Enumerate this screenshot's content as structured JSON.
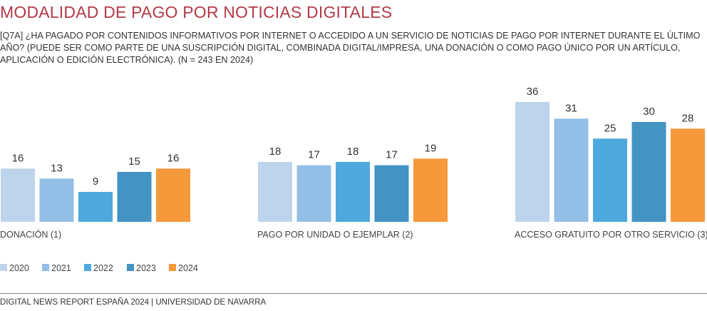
{
  "title": "MODALIDAD DE PAGO POR NOTICIAS DIGITALES",
  "question": "[Q7A] ¿HA PAGADO POR CONTENIDOS INFORMATIVOS POR INTERNET O ACCEDIDO A UN SERVICIO DE NOTICIAS DE PAGO POR INTERNET DURANTE EL ÚLTIMO AÑO? (PUEDE SER COMO PARTE DE UNA SUSCRIPCIÓN DIGITAL, COMBINADA DIGITAL/IMPRESA, UNA DONACIÓN O COMO PAGO ÚNICO POR UN ARTÍCULO, APLICACIÓN O EDICIÓN ELECTRÓNICA). (N = 243 EN 2024)",
  "footer": "DIGITAL NEWS REPORT ESPAÑA 2024 | UNIVERSIDAD DE NAVARRA",
  "chart_data": {
    "type": "bar",
    "categories": [
      "DONACIÓN (1)",
      "PAGO POR UNIDAD O EJEMPLAR (2)",
      "ACCESO GRATUITO POR OTRO SERVICIO (3)"
    ],
    "series": [
      {
        "name": "2020",
        "color": "#bdd4ec",
        "values": [
          16,
          18,
          36
        ]
      },
      {
        "name": "2021",
        "color": "#93bfe6",
        "values": [
          13,
          17,
          31
        ]
      },
      {
        "name": "2022",
        "color": "#4ea8de",
        "values": [
          9,
          18,
          25
        ]
      },
      {
        "name": "2023",
        "color": "#4393c3",
        "values": [
          15,
          17,
          30
        ]
      },
      {
        "name": "2024",
        "color": "#f5993a",
        "values": [
          16,
          19,
          28
        ]
      }
    ],
    "ylim": [
      0,
      36
    ],
    "grid": false,
    "legend_placement": "bottom-left",
    "data_labels": true
  }
}
